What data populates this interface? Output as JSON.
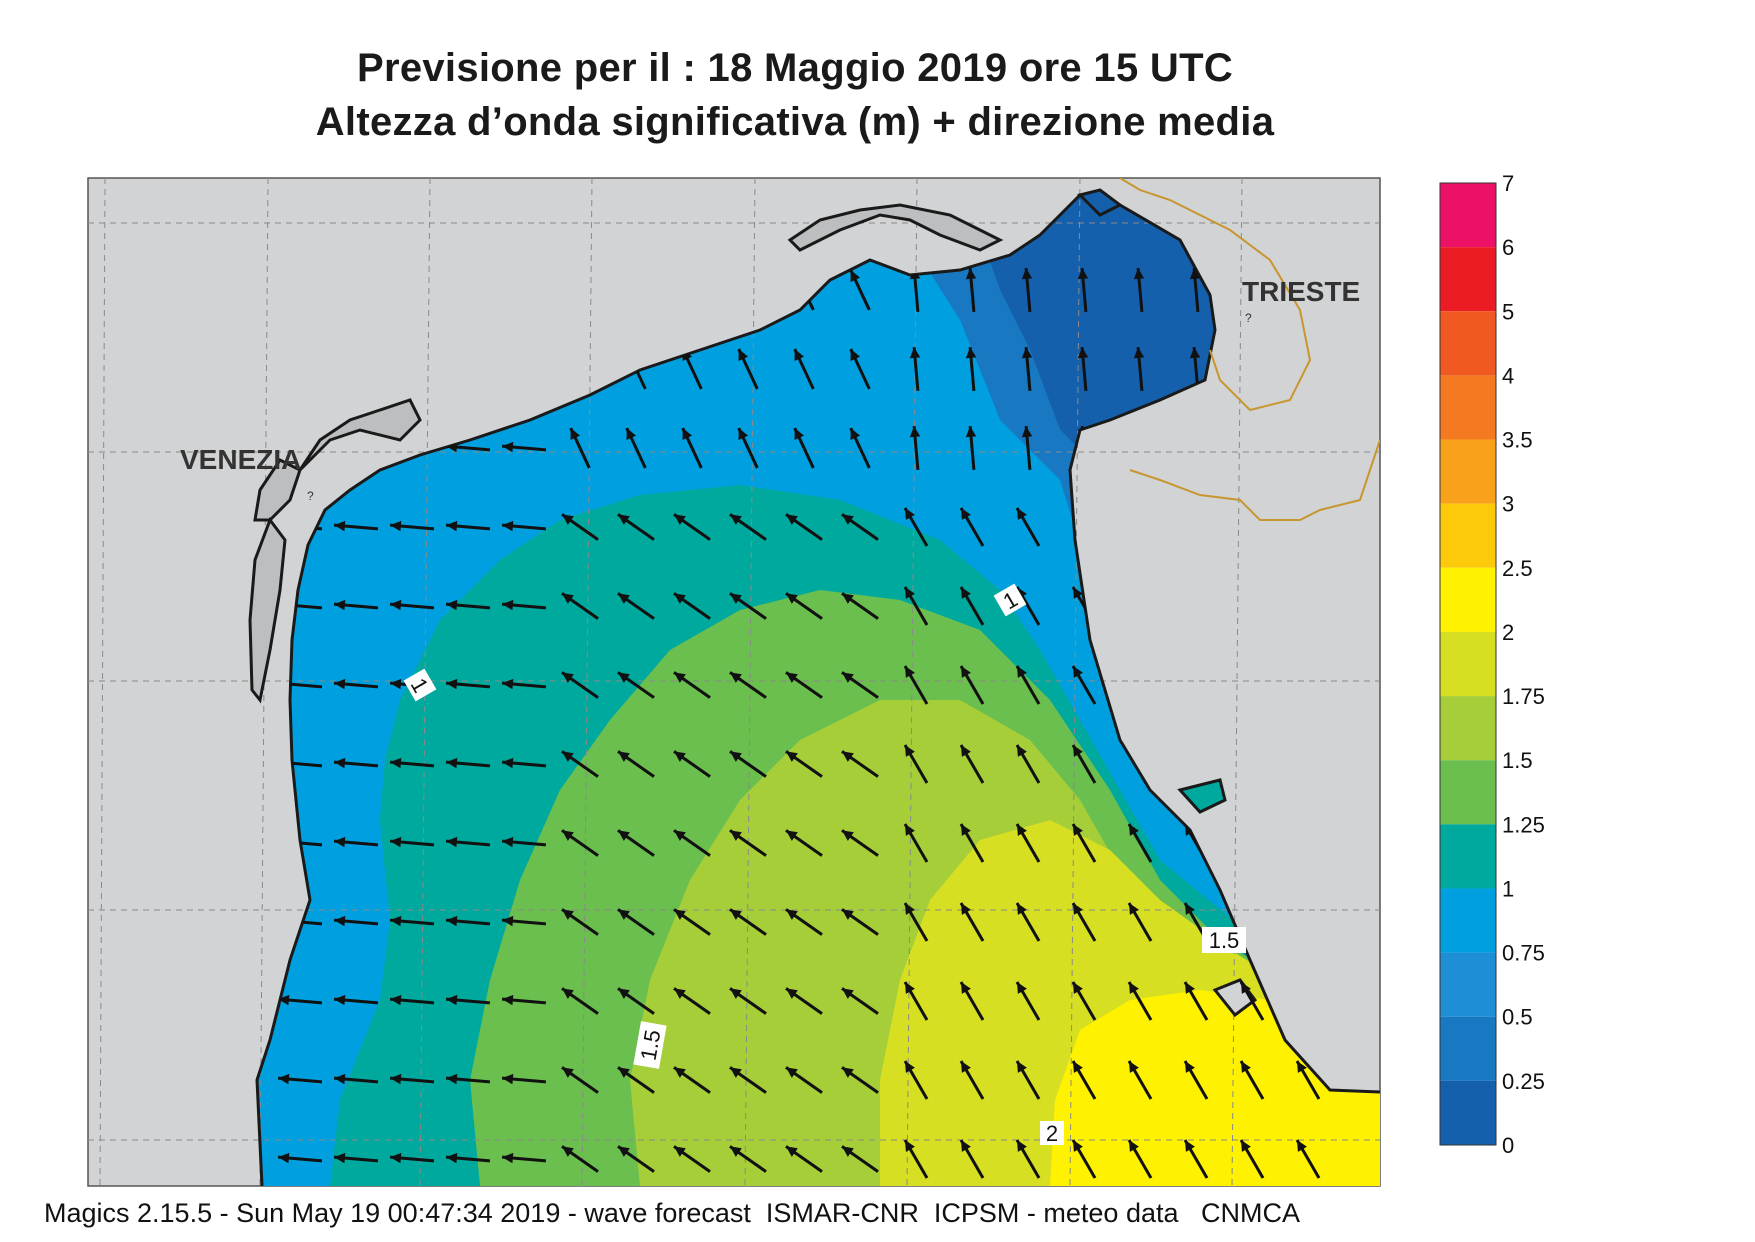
{
  "title": {
    "line1": "Previsione per il  :  18   Maggio  2019   ore 15 UTC",
    "line2": "Altezza d’onda significativa (m) + direzione media"
  },
  "places": {
    "venezia": "VENEZIA",
    "trieste": "TRIESTE"
  },
  "contour_labels": [
    "1",
    "1",
    "1.5",
    "1.5",
    "2"
  ],
  "legend": {
    "entries": [
      {
        "label": "7",
        "color": "#ec1167"
      },
      {
        "label": "6",
        "color": "#ec1c24"
      },
      {
        "label": "5",
        "color": "#f05a22"
      },
      {
        "label": "4",
        "color": "#f47920"
      },
      {
        "label": "3.5",
        "color": "#f9a11b"
      },
      {
        "label": "3",
        "color": "#fdca0b"
      },
      {
        "label": "2.5",
        "color": "#fff200"
      },
      {
        "label": "2",
        "color": "#d7df23"
      },
      {
        "label": "1.75",
        "color": "#a6ce39"
      },
      {
        "label": "1.5",
        "color": "#6bbf4e"
      },
      {
        "label": "1.25",
        "color": "#00a99d"
      },
      {
        "label": "1",
        "color": "#00a0e0"
      },
      {
        "label": "0.75",
        "color": "#1e8fd6"
      },
      {
        "label": "0.5",
        "color": "#1878c2"
      },
      {
        "label": "0.25",
        "color": "#1560ad"
      },
      {
        "label": "0",
        "color": "#1560ad"
      }
    ]
  },
  "land_color": "#d1d3d4",
  "footer": "Magics 2.15.5 - Sun May 19 00:47:34 2019 - wave forecast  ISMAR-CNR  ICPSM - meteo data   CNMCA"
}
